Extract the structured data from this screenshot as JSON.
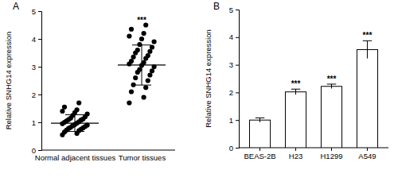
{
  "chart_data": [
    {
      "type": "scatter",
      "title": "A",
      "y_label": "Relative SNHG14 expression",
      "categories": [
        "Normal adjacent tissues",
        "Tumor tissues"
      ],
      "values": [
        [
          0.55,
          0.6,
          0.65,
          0.7,
          0.72,
          0.75,
          0.78,
          0.8,
          0.82,
          0.85,
          0.88,
          0.9,
          0.92,
          0.95,
          0.97,
          1.0,
          1.02,
          1.05,
          1.08,
          1.1,
          1.12,
          1.15,
          1.2,
          1.25,
          1.3,
          1.35,
          1.4,
          1.45,
          1.55,
          1.7
        ],
        [
          1.7,
          1.9,
          2.1,
          2.25,
          2.35,
          2.5,
          2.6,
          2.7,
          2.8,
          2.85,
          2.9,
          3.0,
          3.05,
          3.1,
          3.15,
          3.2,
          3.3,
          3.35,
          3.4,
          3.5,
          3.55,
          3.6,
          3.7,
          3.8,
          3.9,
          4.0,
          4.1,
          4.2,
          4.35,
          4.5
        ]
      ],
      "means": [
        0.97,
        3.06
      ],
      "errors": [
        0.3,
        0.72
      ],
      "significance": [
        null,
        "***"
      ],
      "color": "#000000",
      "marker": "circle",
      "ylim": [
        0,
        5
      ],
      "yticks": [
        0,
        1,
        2,
        3,
        4,
        5
      ]
    },
    {
      "type": "bar",
      "title": "B",
      "y_label": "Relative SNHG14 expression",
      "categories": [
        "BEAS-2B",
        "H23",
        "H1299",
        "A549"
      ],
      "values": [
        1.0,
        2.02,
        2.22,
        3.55
      ],
      "errors": [
        0.08,
        0.1,
        0.08,
        0.32
      ],
      "significance": [
        null,
        "***",
        "***",
        "***"
      ],
      "color": "#ffffff",
      "ylim": [
        0,
        5
      ],
      "yticks": [
        0,
        1,
        2,
        3,
        4,
        5
      ]
    }
  ]
}
